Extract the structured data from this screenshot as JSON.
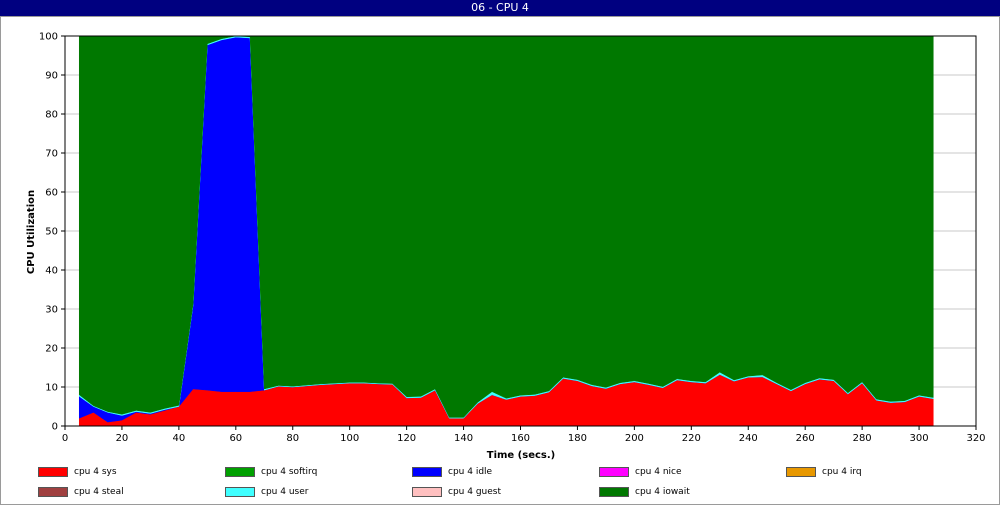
{
  "window": {
    "title": "06 - CPU 4"
  },
  "chart_data": {
    "type": "area",
    "stacked": true,
    "title": "06 - CPU 4",
    "xlabel": "Time (secs.)",
    "ylabel": "CPU Utilization",
    "xlim": [
      0,
      320
    ],
    "ylim": [
      0,
      100
    ],
    "xticks": [
      0,
      20,
      40,
      60,
      80,
      100,
      120,
      140,
      160,
      180,
      200,
      220,
      240,
      260,
      280,
      300,
      320
    ],
    "yticks": [
      0,
      10,
      20,
      30,
      40,
      50,
      60,
      70,
      80,
      90,
      100
    ],
    "grid": true,
    "legend_position": "bottom",
    "x": [
      5,
      10,
      15,
      20,
      25,
      30,
      35,
      40,
      45,
      50,
      55,
      60,
      65,
      70,
      75,
      80,
      85,
      90,
      95,
      100,
      105,
      110,
      115,
      120,
      125,
      130,
      135,
      140,
      145,
      150,
      155,
      160,
      165,
      170,
      175,
      180,
      185,
      190,
      195,
      200,
      205,
      210,
      215,
      220,
      225,
      230,
      235,
      240,
      245,
      250,
      255,
      260,
      265,
      270,
      275,
      280,
      285,
      290,
      295,
      300,
      305
    ],
    "series": [
      {
        "name": "cpu 4 sys",
        "color": "#ff0000",
        "values": [
          2,
          3.5,
          1,
          1.5,
          3.5,
          3,
          4,
          5,
          9.5,
          9.2,
          8.8,
          8.8,
          8.8,
          9.2,
          10.2,
          10,
          10.3,
          10.6,
          10.8,
          11,
          11,
          10.8,
          10.7,
          7.2,
          7.3,
          9.2,
          2,
          2,
          5.8,
          8,
          6.8,
          7.6,
          7.8,
          8.7,
          12.2,
          11.6,
          10.3,
          9.6,
          10.8,
          11.3,
          10.6,
          9.8,
          11.8,
          11.3,
          11,
          13.2,
          11.5,
          12.5,
          12.6,
          10.8,
          9,
          10.8,
          12,
          11.6,
          8.2,
          11,
          6.6,
          6,
          6.2,
          7.6,
          7
        ]
      },
      {
        "name": "cpu 4 softirq",
        "color": "#00a000",
        "values": [
          0,
          0,
          0,
          0,
          0,
          0,
          0,
          0,
          0,
          0,
          0,
          0,
          0,
          0,
          0,
          0,
          0,
          0,
          0,
          0,
          0,
          0,
          0,
          0,
          0,
          0,
          0,
          0,
          0,
          0,
          0,
          0,
          0,
          0,
          0,
          0,
          0,
          0,
          0,
          0,
          0,
          0,
          0,
          0,
          0,
          0,
          0,
          0,
          0,
          0,
          0,
          0,
          0,
          0,
          0,
          0,
          0,
          0,
          0,
          0,
          0
        ]
      },
      {
        "name": "cpu 4 idle",
        "color": "#0000ff",
        "values": [
          5.6,
          1.5,
          2.5,
          1.2,
          0.2,
          0.2,
          0.2,
          0,
          21.5,
          88.5,
          90.2,
          90.9,
          90.7,
          0,
          0,
          0,
          0,
          0,
          0,
          0,
          0,
          0,
          0,
          0,
          0,
          0,
          0,
          0,
          0,
          0,
          0,
          0,
          0,
          0,
          0,
          0,
          0,
          0,
          0,
          0,
          0,
          0,
          0,
          0,
          0,
          0,
          0,
          0,
          0,
          0,
          0,
          0,
          0,
          0,
          0,
          0,
          0,
          0,
          0,
          0,
          0
        ]
      },
      {
        "name": "cpu 4 nice",
        "color": "#ff00ff",
        "values": [
          0,
          0,
          0,
          0,
          0,
          0,
          0,
          0,
          0,
          0,
          0,
          0,
          0,
          0,
          0,
          0,
          0,
          0,
          0,
          0,
          0,
          0,
          0,
          0,
          0,
          0,
          0,
          0,
          0,
          0,
          0,
          0,
          0,
          0,
          0,
          0,
          0,
          0,
          0,
          0,
          0,
          0,
          0,
          0,
          0,
          0,
          0,
          0,
          0,
          0,
          0,
          0,
          0,
          0,
          0,
          0,
          0,
          0,
          0,
          0,
          0
        ]
      },
      {
        "name": "cpu 4 irq",
        "color": "#e89800",
        "values": [
          0,
          0,
          0,
          0,
          0,
          0,
          0,
          0,
          0,
          0,
          0,
          0,
          0,
          0,
          0,
          0,
          0,
          0,
          0,
          0,
          0,
          0,
          0,
          0,
          0,
          0,
          0,
          0,
          0,
          0,
          0,
          0,
          0,
          0,
          0,
          0,
          0,
          0,
          0,
          0,
          0,
          0,
          0,
          0,
          0,
          0,
          0,
          0,
          0,
          0,
          0,
          0,
          0,
          0,
          0,
          0,
          0,
          0,
          0,
          0,
          0
        ]
      },
      {
        "name": "cpu 4 steal",
        "color": "#a04040",
        "values": [
          0,
          0,
          0,
          0,
          0,
          0,
          0,
          0,
          0,
          0,
          0,
          0,
          0,
          0,
          0,
          0,
          0,
          0,
          0,
          0,
          0,
          0,
          0,
          0,
          0,
          0,
          0,
          0,
          0,
          0,
          0,
          0,
          0,
          0,
          0,
          0,
          0,
          0,
          0,
          0,
          0,
          0,
          0,
          0,
          0,
          0,
          0,
          0,
          0,
          0,
          0,
          0,
          0,
          0,
          0,
          0,
          0,
          0,
          0,
          0,
          0
        ]
      },
      {
        "name": "cpu 4 user",
        "color": "#40ffff",
        "values": [
          0.4,
          0.2,
          0.2,
          0.3,
          0.3,
          0.3,
          0.3,
          0.3,
          0.3,
          0.3,
          0.3,
          0.3,
          0.3,
          0.3,
          0.2,
          0.2,
          0.2,
          0.2,
          0.2,
          0.2,
          0.2,
          0.2,
          0.2,
          0.3,
          0.3,
          0.3,
          0.2,
          0.2,
          0.3,
          0.8,
          0.3,
          0.3,
          0.3,
          0.3,
          0.3,
          0.3,
          0.3,
          0.3,
          0.3,
          0.3,
          0.3,
          0.3,
          0.3,
          0.3,
          0.3,
          0.6,
          0.3,
          0.3,
          0.5,
          0.3,
          0.3,
          0.3,
          0.3,
          0.3,
          0.3,
          0.3,
          0.3,
          0.3,
          0.3,
          0.3,
          0.3
        ]
      },
      {
        "name": "cpu 4 guest",
        "color": "#ffc0c0",
        "values": [
          0,
          0,
          0,
          0,
          0,
          0,
          0,
          0,
          0,
          0,
          0,
          0,
          0,
          0,
          0,
          0,
          0,
          0,
          0,
          0,
          0,
          0,
          0,
          0,
          0,
          0,
          0,
          0,
          0,
          0,
          0,
          0,
          0,
          0,
          0,
          0,
          0,
          0,
          0,
          0,
          0,
          0,
          0,
          0,
          0,
          0,
          0,
          0,
          0,
          0,
          0,
          0,
          0,
          0,
          0,
          0,
          0,
          0,
          0,
          0,
          0
        ]
      },
      {
        "name": "cpu 4 iowait",
        "color": "#007800",
        "values": [
          92,
          94.8,
          96.3,
          97,
          96,
          96.5,
          95.5,
          94.7,
          68.7,
          2,
          0.7,
          0,
          0.2,
          90.5,
          89.6,
          89.8,
          89.5,
          89.2,
          89,
          88.8,
          88.8,
          89,
          89.1,
          92.5,
          92.4,
          90.5,
          97.8,
          97.8,
          93.9,
          91.2,
          92.9,
          92.1,
          91.9,
          91,
          87.5,
          88.1,
          89.4,
          90.1,
          88.9,
          88.4,
          89.1,
          89.9,
          87.9,
          88.4,
          88.7,
          86.2,
          88.2,
          87.2,
          86.9,
          88.9,
          90.7,
          88.9,
          87.7,
          88.1,
          91.5,
          88.7,
          93.1,
          93.7,
          93.5,
          92.1,
          92.7
        ]
      }
    ]
  }
}
